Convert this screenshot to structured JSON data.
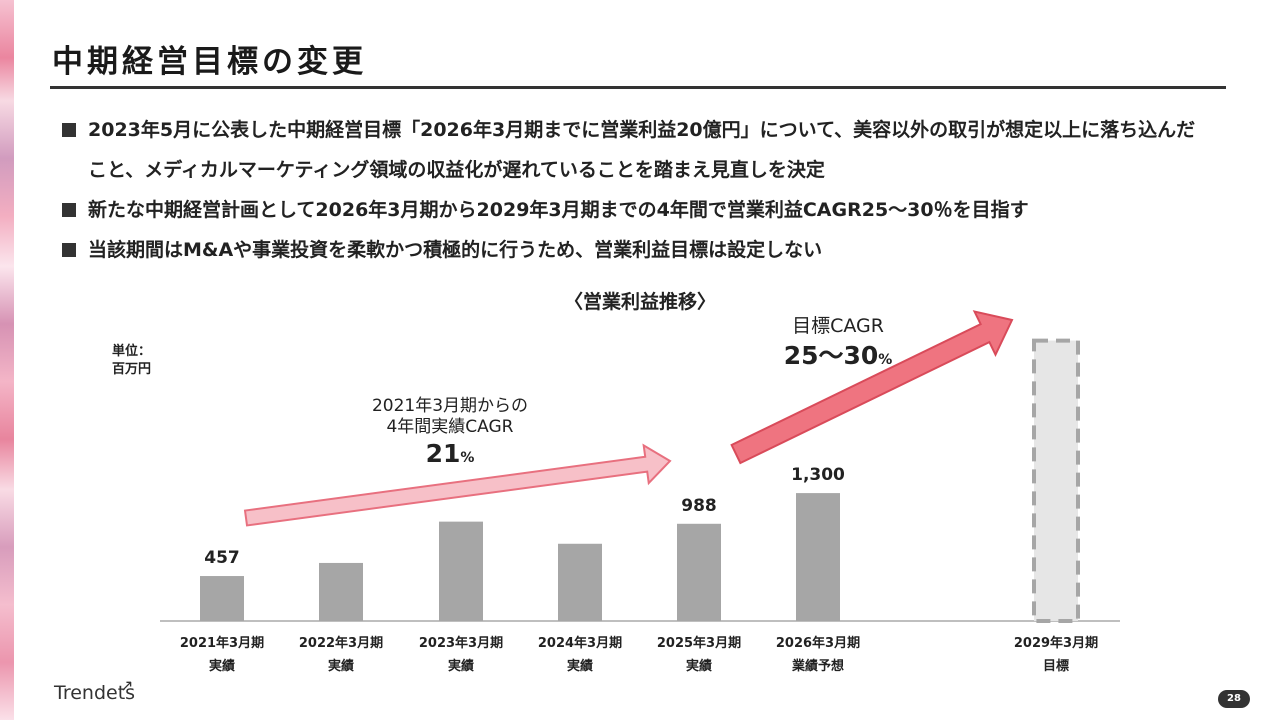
{
  "page": {
    "title": "中期経営目標の変更",
    "page_number": "28",
    "logo_text": "Trendets"
  },
  "bullets": [
    "2023年5月に公表した中期経営目標「2026年3月期までに営業利益20億円」について、美容以外の取引が想定以上に落ち込んだこと、メディカルマーケティング領域の収益化が遅れていることを踏まえ見直しを決定",
    "新たな中期経営計画として2026年3月期から2029年3月期までの4年間で営業利益CAGR25～30％を目指す",
    "当該期間はM&Aや事業投資を柔軟かつ積極的に行うため、営業利益目標は設定しない"
  ],
  "chart_data": {
    "type": "bar",
    "title": "〈営業利益推移〉",
    "unit_label": [
      "単位：",
      "百万円"
    ],
    "categories": [
      [
        "2021年3月期",
        "実績"
      ],
      [
        "2022年3月期",
        "実績"
      ],
      [
        "2023年3月期",
        "実績"
      ],
      [
        "2024年3月期",
        "実績"
      ],
      [
        "2025年3月期",
        "実績"
      ],
      [
        "2026年3月期",
        "業績予想"
      ],
      [
        "2029年3月期",
        "目標"
      ]
    ],
    "series": [
      {
        "values": [
          457,
          590,
          1010,
          785,
          988,
          1300,
          2850
        ]
      }
    ],
    "data_labels": [
      "457",
      "",
      "",
      "",
      "988",
      "1,300",
      ""
    ],
    "target_index": 6,
    "ylim": [
      0,
      3100
    ],
    "annotations": {
      "past_cagr": {
        "lines": [
          "2021年3月期からの",
          "4年間実績CAGR"
        ],
        "value": "21",
        "unit": "%"
      },
      "target_cagr": {
        "lines": [
          "目標CAGR"
        ],
        "value": "25～30",
        "unit": "%"
      }
    },
    "colors": {
      "bar": "#a6a6a6",
      "target_fill": "#e6e6e6",
      "target_border": "#a6a6a6",
      "past_arrow_fill": "#f7c0c8",
      "past_arrow_stroke": "#e8707f",
      "target_arrow_fill": "#ef7480",
      "target_arrow_stroke": "#d94b5a",
      "axis": "#bfbfbf"
    }
  }
}
